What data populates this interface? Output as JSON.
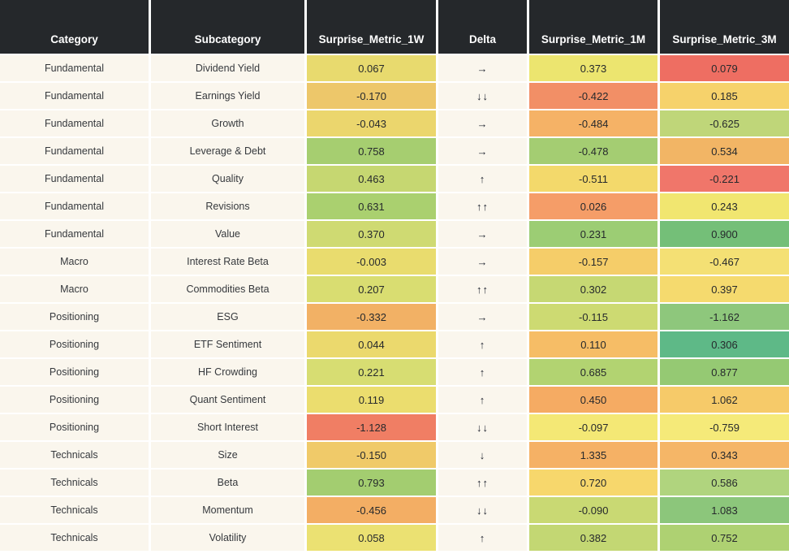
{
  "colors": {
    "header_bg": "#25282b",
    "header_text": "#ffffff",
    "row_label_bg": "#faf6ed",
    "grid_line": "#ffffff",
    "value_text": "#26292c"
  },
  "chart_data": {
    "type": "table",
    "columns": [
      "Category",
      "Subcategory",
      "Surprise_Metric_1W",
      "Delta",
      "Surprise_Metric_1M",
      "Surprise_Metric_3M"
    ],
    "rows": [
      {
        "category": "Fundamental",
        "subcategory": "Dividend Yield",
        "m1w": "0.067",
        "delta": "→",
        "m1m": "0.373",
        "m3m": "0.079",
        "colors": {
          "m1w": "#e8da6e",
          "m1m": "#ece56f",
          "m3m": "#ee6e62"
        }
      },
      {
        "category": "Fundamental",
        "subcategory": "Earnings Yield",
        "m1w": "-0.170",
        "delta": "↓↓",
        "m1m": "-0.422",
        "m3m": "0.185",
        "colors": {
          "m1w": "#edc76a",
          "m1m": "#f28f66",
          "m3m": "#f6d26b"
        }
      },
      {
        "category": "Fundamental",
        "subcategory": "Growth",
        "m1w": "-0.043",
        "delta": "→",
        "m1m": "-0.484",
        "m3m": "-0.625",
        "colors": {
          "m1w": "#ebd66d",
          "m1m": "#f5b266",
          "m3m": "#bfd679"
        }
      },
      {
        "category": "Fundamental",
        "subcategory": "Leverage & Debt",
        "m1w": "0.758",
        "delta": "→",
        "m1m": "-0.478",
        "m3m": "0.534",
        "colors": {
          "m1w": "#a6ce70",
          "m1m": "#a4cd72",
          "m3m": "#f2b565"
        }
      },
      {
        "category": "Fundamental",
        "subcategory": "Quality",
        "m1w": "0.463",
        "delta": "↑",
        "m1m": "-0.511",
        "m3m": "-0.221",
        "colors": {
          "m1w": "#c6d771",
          "m1m": "#f3d96b",
          "m3m": "#f0766a"
        }
      },
      {
        "category": "Fundamental",
        "subcategory": "Revisions",
        "m1w": "0.631",
        "delta": "↑↑",
        "m1m": "0.026",
        "m3m": "0.243",
        "colors": {
          "m1w": "#aad06f",
          "m1m": "#f59d68",
          "m3m": "#f1e670"
        }
      },
      {
        "category": "Fundamental",
        "subcategory": "Value",
        "m1w": "0.370",
        "delta": "→",
        "m1m": "0.231",
        "m3m": "0.900",
        "colors": {
          "m1w": "#cfda72",
          "m1m": "#9ccd74",
          "m3m": "#74bf78"
        }
      },
      {
        "category": "Macro",
        "subcategory": "Interest Rate Beta",
        "m1w": "-0.003",
        "delta": "→",
        "m1m": "-0.157",
        "m3m": "-0.467",
        "colors": {
          "m1w": "#e9dc6e",
          "m1m": "#f5cd69",
          "m3m": "#f4e074"
        }
      },
      {
        "category": "Macro",
        "subcategory": "Commodities Beta",
        "m1w": "0.207",
        "delta": "↑↑",
        "m1m": "0.302",
        "m3m": "0.397",
        "colors": {
          "m1w": "#d9dd71",
          "m1m": "#c6d873",
          "m3m": "#f5da6e"
        }
      },
      {
        "category": "Positioning",
        "subcategory": "ESG",
        "m1w": "-0.332",
        "delta": "→",
        "m1m": "-0.115",
        "m3m": "-1.162",
        "colors": {
          "m1w": "#f2b165",
          "m1m": "#cdda72",
          "m3m": "#8ec77c"
        }
      },
      {
        "category": "Positioning",
        "subcategory": "ETF Sentiment",
        "m1w": "0.044",
        "delta": "↑",
        "m1m": "0.110",
        "m3m": "0.306",
        "colors": {
          "m1w": "#ebd96d",
          "m1m": "#f6bd66",
          "m3m": "#5eb987"
        }
      },
      {
        "category": "Positioning",
        "subcategory": "HF Crowding",
        "m1w": "0.221",
        "delta": "↑",
        "m1m": "0.685",
        "m3m": "0.877",
        "colors": {
          "m1w": "#d7dd72",
          "m1m": "#b2d371",
          "m3m": "#95c973"
        }
      },
      {
        "category": "Positioning",
        "subcategory": "Quant Sentiment",
        "m1w": "0.119",
        "delta": "↑",
        "m1m": "0.450",
        "m3m": "1.062",
        "colors": {
          "m1w": "#ebdd6e",
          "m1m": "#f5ab63",
          "m3m": "#f6ca69"
        }
      },
      {
        "category": "Positioning",
        "subcategory": "Short Interest",
        "m1w": "-1.128",
        "delta": "↓↓",
        "m1m": "-0.097",
        "m3m": "-0.759",
        "colors": {
          "m1w": "#f07e64",
          "m1m": "#f4e875",
          "m3m": "#f5ea79"
        }
      },
      {
        "category": "Technicals",
        "subcategory": "Size",
        "m1w": "-0.150",
        "delta": "↓",
        "m1m": "1.335",
        "m3m": "0.343",
        "colors": {
          "m1w": "#f0ca69",
          "m1m": "#f5b165",
          "m3m": "#f5b667"
        }
      },
      {
        "category": "Technicals",
        "subcategory": "Beta",
        "m1w": "0.793",
        "delta": "↑↑",
        "m1m": "0.720",
        "m3m": "0.586",
        "colors": {
          "m1w": "#a3cd70",
          "m1m": "#f7d76c",
          "m3m": "#b0d47e"
        }
      },
      {
        "category": "Technicals",
        "subcategory": "Momentum",
        "m1w": "-0.456",
        "delta": "↓↓",
        "m1m": "-0.090",
        "m3m": "1.083",
        "colors": {
          "m1w": "#f3ae64",
          "m1m": "#c9d973",
          "m3m": "#8cc67b"
        }
      },
      {
        "category": "Technicals",
        "subcategory": "Volatility",
        "m1w": "0.058",
        "delta": "↑",
        "m1m": "0.382",
        "m3m": "0.752",
        "colors": {
          "m1w": "#ebe172",
          "m1m": "#c3d773",
          "m3m": "#aed172"
        }
      }
    ]
  }
}
